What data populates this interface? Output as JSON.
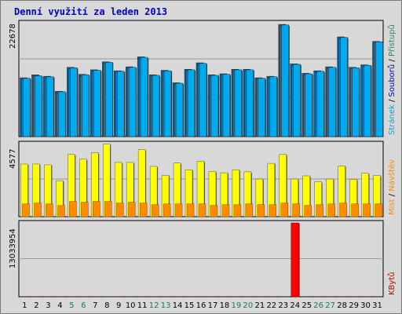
{
  "chart_data": {
    "type": "bar",
    "title": "Denní využití za leden 2013",
    "categories": [
      "1",
      "2",
      "3",
      "4",
      "5",
      "6",
      "7",
      "8",
      "9",
      "10",
      "11",
      "12",
      "13",
      "14",
      "15",
      "16",
      "17",
      "18",
      "19",
      "20",
      "21",
      "22",
      "23",
      "24",
      "25",
      "26",
      "27",
      "28",
      "29",
      "30",
      "31"
    ],
    "weekend_categories": [
      "5",
      "6",
      "12",
      "13",
      "19",
      "20",
      "26",
      "27"
    ],
    "panels": [
      {
        "ymax_label": "22678",
        "ymax": 22678,
        "legend": [
          {
            "text": "Přístupů",
            "color": "#2e8b57"
          },
          {
            "text": "Souborů",
            "color": "#0000cc"
          },
          {
            "text": "Stránek",
            "color": "#00a6d6"
          }
        ],
        "series": [
          {
            "name": "Přístupů",
            "color": "#00669e",
            "values": [
              11800,
              12400,
              12100,
              9100,
              13900,
              12500,
              13400,
              15000,
              13200,
              14000,
              16000,
              12400,
              13300,
              10800,
              13500,
              14800,
              12400,
              12600,
              13500,
              13500,
              11800,
              12100,
              22500,
              14600,
              12700,
              13200,
              14000,
              20000,
              13900,
              14400,
              19100
            ]
          },
          {
            "name": "Souborů",
            "color": "#1c7fc0",
            "values": [
              11500,
              12100,
              11800,
              8800,
              13600,
              12200,
              13100,
              14700,
              12900,
              13700,
              15700,
              12100,
              13000,
              10500,
              13200,
              14500,
              12100,
              12300,
              13200,
              13200,
              11500,
              11800,
              22200,
              14300,
              12400,
              12900,
              13700,
              19700,
              13600,
              14100,
              18800
            ]
          },
          {
            "name": "Stránek",
            "color": "#00aaee",
            "values": [
              11700,
              12200,
              12000,
              9000,
              13800,
              12400,
              13300,
              14900,
              13100,
              13900,
              15900,
              12300,
              13200,
              10700,
              13400,
              14700,
              12300,
              12500,
              13400,
              13400,
              11700,
              12000,
              22400,
              14500,
              12600,
              13100,
              13900,
              19900,
              13800,
              14300,
              19000
            ]
          }
        ]
      },
      {
        "ymax_label": "4577",
        "ymax": 4577,
        "legend": [
          {
            "text": "Návštěv",
            "color": "#ff8c00"
          },
          {
            "text": "Míst",
            "color": "#ff8c00"
          }
        ],
        "series": [
          {
            "name": "Návštěv",
            "color": "#ffff00",
            "values": [
              3300,
              3300,
              3250,
              2250,
              3900,
              3600,
              4000,
              4550,
              3400,
              3400,
              4200,
              3150,
              2580,
              3360,
              2940,
              3480,
              2830,
              2750,
              2940,
              2810,
              2360,
              3340,
              3900,
              2360,
              2560,
              2180,
              2360,
              3180,
              2340,
              2720,
              2580
            ]
          },
          {
            "name": "Míst",
            "color": "#ff8c00",
            "values": [
              800,
              850,
              800,
              700,
              950,
              900,
              950,
              950,
              850,
              900,
              850,
              750,
              800,
              800,
              800,
              800,
              700,
              750,
              750,
              800,
              750,
              750,
              850,
              800,
              700,
              750,
              800,
              850,
              800,
              800,
              800
            ]
          }
        ]
      },
      {
        "ymax_label": "13033954",
        "ymax": 13033954,
        "legend": [
          {
            "text": "KBytů",
            "color": "#cc0000"
          }
        ],
        "series": [
          {
            "name": "KBytů",
            "color": "#ff0000",
            "values": [
              8400,
              9300,
              8200,
              5900,
              10000,
              9000,
              9700,
              11600,
              9800,
              10600,
              11700,
              9200,
              8900,
              9000,
              7200,
              9600,
              10900,
              8300,
              8000,
              8500,
              8900,
              7300,
              8000,
              13033954,
              9800,
              7800,
              8400,
              8500,
              11500,
              9300,
              9300
            ]
          }
        ]
      }
    ]
  }
}
